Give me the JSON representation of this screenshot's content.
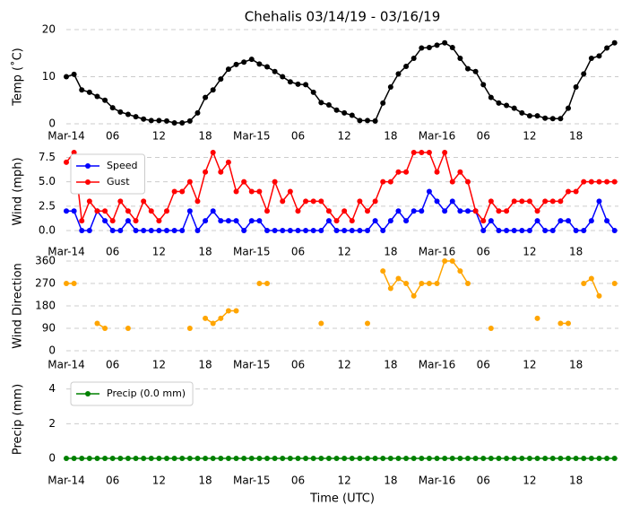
{
  "chart_data": [
    {
      "type": "line",
      "title": "Chehalis 03/14/19 - 03/16/19",
      "ylabel": "Temp (˚C)",
      "series": [
        {
          "name": null,
          "color": "#000000",
          "values": [
            10.0,
            10.5,
            7.2,
            6.7,
            5.8,
            5.0,
            3.4,
            2.5,
            2.0,
            1.5,
            1.0,
            0.7,
            0.7,
            0.6,
            0.2,
            0.2,
            0.6,
            2.3,
            5.6,
            7.2,
            9.5,
            11.6,
            12.6,
            13.1,
            13.7,
            12.7,
            12.1,
            11.1,
            10.0,
            8.9,
            8.4,
            8.3,
            6.7,
            4.5,
            4.0,
            2.9,
            2.3,
            1.8,
            0.7,
            0.7,
            0.6,
            4.4,
            7.8,
            10.6,
            12.2,
            13.9,
            16.1,
            16.2,
            16.7,
            17.2,
            16.2,
            13.9,
            11.7,
            11.1,
            8.3,
            5.6,
            4.4,
            3.9,
            3.3,
            2.3,
            1.7,
            1.7,
            1.2,
            1.1,
            1.1,
            3.3,
            7.8,
            10.6,
            13.9,
            14.4,
            16.1,
            17.2
          ]
        }
      ],
      "xlim": [
        0,
        71.5
      ],
      "ylim": [
        0,
        20
      ],
      "yticks": [
        0,
        10,
        20
      ],
      "xticks": [
        {
          "value": 0,
          "label": "Mar-14"
        },
        {
          "value": 6,
          "label": "06"
        },
        {
          "value": 12,
          "label": "12"
        },
        {
          "value": 18,
          "label": "18"
        },
        {
          "value": 24,
          "label": "Mar-15"
        },
        {
          "value": 30,
          "label": "06"
        },
        {
          "value": 36,
          "label": "12"
        },
        {
          "value": 42,
          "label": "18"
        },
        {
          "value": 48,
          "label": "Mar-16"
        },
        {
          "value": 54,
          "label": "06"
        },
        {
          "value": 60,
          "label": "12"
        },
        {
          "value": 66,
          "label": "18"
        }
      ],
      "grid": true
    },
    {
      "type": "line",
      "ylabel": "Wind (mph)",
      "series": [
        {
          "name": "Speed",
          "color": "#0000ff",
          "values": [
            2,
            2,
            0,
            0,
            2,
            1,
            0,
            0,
            1,
            0,
            0,
            0,
            0,
            0,
            0,
            0,
            2,
            0,
            1,
            2,
            1,
            1,
            1,
            0,
            1,
            1,
            0,
            0,
            0,
            0,
            0,
            0,
            0,
            0,
            1,
            0,
            0,
            0,
            0,
            0,
            1,
            0,
            1,
            2,
            1,
            2,
            2,
            4,
            3,
            2,
            3,
            2,
            2,
            2,
            0,
            1,
            0,
            0,
            0,
            0,
            0,
            1,
            0,
            0,
            1,
            1,
            0,
            0,
            1,
            3,
            1,
            0
          ]
        },
        {
          "name": "Gust",
          "color": "#ff0000",
          "values": [
            7,
            8,
            1,
            3,
            2,
            2,
            1,
            3,
            2,
            1,
            3,
            2,
            1,
            2,
            4,
            4,
            5,
            3,
            6,
            8,
            6,
            7,
            4,
            5,
            4,
            4,
            2,
            5,
            3,
            4,
            2,
            3,
            3,
            3,
            2,
            1,
            2,
            1,
            3,
            2,
            3,
            5,
            5,
            6,
            6,
            8,
            8,
            8,
            6,
            8,
            5,
            6,
            5,
            2,
            1,
            3,
            2,
            2,
            3,
            3,
            3,
            2,
            3,
            3,
            3,
            4,
            4,
            5,
            5,
            5,
            5,
            5
          ]
        }
      ],
      "xlim": [
        0,
        71.5
      ],
      "ylim": [
        0,
        8
      ],
      "yticks": [
        {
          "value": 0,
          "label": "0.0"
        },
        2.5,
        {
          "value": 5,
          "label": "5.0"
        },
        7.5
      ],
      "xticks": [
        {
          "value": 0,
          "label": "Mar-14"
        },
        {
          "value": 6,
          "label": "06"
        },
        {
          "value": 12,
          "label": "12"
        },
        {
          "value": 18,
          "label": "18"
        },
        {
          "value": 24,
          "label": "Mar-15"
        },
        {
          "value": 30,
          "label": "06"
        },
        {
          "value": 36,
          "label": "12"
        },
        {
          "value": 42,
          "label": "18"
        },
        {
          "value": 48,
          "label": "Mar-16"
        },
        {
          "value": 54,
          "label": "06"
        },
        {
          "value": 60,
          "label": "12"
        },
        {
          "value": 66,
          "label": "18"
        }
      ],
      "grid": true,
      "legend": "upper left"
    },
    {
      "type": "line",
      "ylabel": "Wind Direction",
      "series": [
        {
          "name": null,
          "color": "#ffa500",
          "values": [
            270,
            270,
            null,
            null,
            110,
            90,
            null,
            null,
            90,
            null,
            null,
            null,
            null,
            null,
            null,
            null,
            90,
            null,
            130,
            110,
            130,
            160,
            160,
            null,
            null,
            270,
            270,
            null,
            null,
            null,
            null,
            null,
            null,
            110,
            null,
            null,
            null,
            null,
            null,
            110,
            null,
            320,
            250,
            290,
            270,
            220,
            270,
            270,
            270,
            360,
            360,
            320,
            270,
            null,
            null,
            90,
            null,
            null,
            null,
            null,
            null,
            130,
            null,
            null,
            110,
            110,
            null,
            270,
            290,
            220,
            null,
            270
          ]
        }
      ],
      "xlim": [
        0,
        71.5
      ],
      "ylim": [
        0,
        360
      ],
      "yticks": [
        0,
        90,
        180,
        270,
        360
      ],
      "xticks": [
        {
          "value": 0,
          "label": "Mar-14"
        },
        {
          "value": 6,
          "label": "06"
        },
        {
          "value": 12,
          "label": "12"
        },
        {
          "value": 18,
          "label": "18"
        },
        {
          "value": 24,
          "label": "Mar-15"
        },
        {
          "value": 30,
          "label": "06"
        },
        {
          "value": 36,
          "label": "12"
        },
        {
          "value": 42,
          "label": "18"
        },
        {
          "value": 48,
          "label": "Mar-16"
        },
        {
          "value": 54,
          "label": "06"
        },
        {
          "value": 60,
          "label": "12"
        },
        {
          "value": 66,
          "label": "18"
        }
      ],
      "grid": true
    },
    {
      "type": "line",
      "ylabel": "Precip (mm)",
      "xlabel": "Time (UTC)",
      "series": [
        {
          "name": "Precip (0.0 mm)",
          "color": "#008000",
          "values": [
            0,
            0,
            0,
            0,
            0,
            0,
            0,
            0,
            0,
            0,
            0,
            0,
            0,
            0,
            0,
            0,
            0,
            0,
            0,
            0,
            0,
            0,
            0,
            0,
            0,
            0,
            0,
            0,
            0,
            0,
            0,
            0,
            0,
            0,
            0,
            0,
            0,
            0,
            0,
            0,
            0,
            0,
            0,
            0,
            0,
            0,
            0,
            0,
            0,
            0,
            0,
            0,
            0,
            0,
            0,
            0,
            0,
            0,
            0,
            0,
            0,
            0,
            0,
            0,
            0,
            0,
            0,
            0,
            0,
            0,
            0,
            0
          ]
        }
      ],
      "xlim": [
        0,
        71.5
      ],
      "ylim": [
        0,
        4.5
      ],
      "yticks": [
        0,
        2,
        4
      ],
      "xticks": [
        {
          "value": 0,
          "label": "Mar-14"
        },
        {
          "value": 6,
          "label": "06"
        },
        {
          "value": 12,
          "label": "12"
        },
        {
          "value": 18,
          "label": "18"
        },
        {
          "value": 24,
          "label": "Mar-15"
        },
        {
          "value": 30,
          "label": "06"
        },
        {
          "value": 36,
          "label": "12"
        },
        {
          "value": 42,
          "label": "18"
        },
        {
          "value": 48,
          "label": "Mar-16"
        },
        {
          "value": 54,
          "label": "06"
        },
        {
          "value": 60,
          "label": "12"
        },
        {
          "value": 66,
          "label": "18"
        }
      ],
      "grid": true,
      "legend": "upper left"
    }
  ]
}
